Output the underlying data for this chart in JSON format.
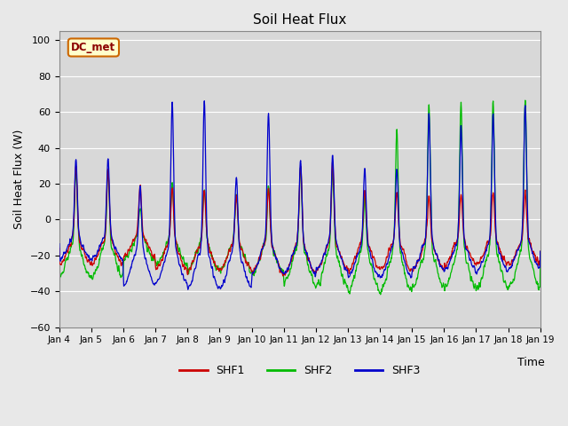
{
  "title": "Soil Heat Flux",
  "ylabel": "Soil Heat Flux (W)",
  "xlabel": "Time",
  "ylim": [
    -60,
    105
  ],
  "yticks": [
    -60,
    -40,
    -20,
    0,
    20,
    40,
    60,
    80,
    100
  ],
  "line_colors": [
    "#cc0000",
    "#00bb00",
    "#0000cc"
  ],
  "line_labels": [
    "SHF1",
    "SHF2",
    "SHF3"
  ],
  "bg_color": "#d8d8d8",
  "fig_bg": "#e8e8e8",
  "annotation_label": "DC_met",
  "annotation_bg": "#ffffcc",
  "annotation_border": "#cc6600",
  "night_base": -25,
  "days": 15,
  "pts_per_day": 96,
  "spike_sharpness": 6.0
}
